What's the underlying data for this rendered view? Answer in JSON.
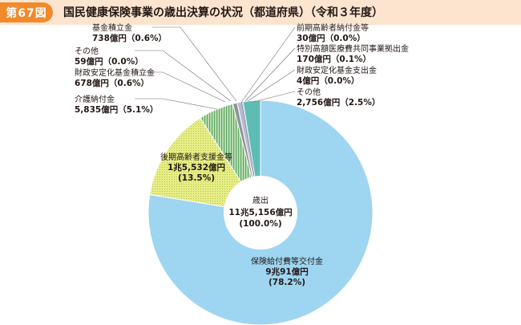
{
  "figure": {
    "number": "第67図",
    "title": "国民健康保険事業の歳出決算の状況（都道府県）（令和３年度）"
  },
  "colors": {
    "header_band": "#fce4cf",
    "badge": "#f08a2a",
    "main_slice": "#9ed5f1",
    "kaigo_slice": "#dfe96a",
    "kouki_slice": "#dfe96a",
    "kikin_slice": "#a9d6a3",
    "other_slice": "#5dbcb6",
    "small_slice": "#b3b9dc"
  },
  "chart_data": {
    "type": "pie",
    "center": {
      "label": "歳出",
      "value": "11兆5,156億円",
      "pct": "(100.0%)"
    },
    "slices": [
      {
        "name": "保険給付費等交付金",
        "amount": "9兆91億円",
        "pct": "(78.2%)",
        "share": 78.2,
        "style": "solid_blue"
      },
      {
        "name": "後期高齢者支援金等",
        "amount": "1兆5,532億円",
        "pct": "(13.5%)",
        "share": 13.5,
        "style": "dots_yellow"
      },
      {
        "name": "介護納付金",
        "amount": "5,835億円",
        "pct": "（5.1%）",
        "share": 5.1,
        "style": "stripes_green"
      },
      {
        "name": "財政安定化基金積立金",
        "amount": "678億円",
        "pct": "（0.6%）",
        "share": 0.6,
        "style": "gray"
      },
      {
        "name": "その他",
        "amount": "59億円",
        "pct": "（0.0%）",
        "share": 0.05,
        "style": "white"
      },
      {
        "name": "基金積立金",
        "amount": "738億円",
        "pct": "（0.6%）",
        "share": 0.6,
        "style": "lavender"
      },
      {
        "name": "前期高齢者納付金等",
        "amount": "30億円",
        "pct": "（0.0%）",
        "share": 0.05,
        "style": "white"
      },
      {
        "name": "特別高額医療費共同事業拠出金",
        "amount": "170億円",
        "pct": "（0.1%）",
        "share": 0.15,
        "style": "white"
      },
      {
        "name": "財政安定化基金支出金",
        "amount": "4億円",
        "pct": "（0.0%）",
        "share": 0.05,
        "style": "white"
      },
      {
        "name": "その他",
        "amount": "2,756億円",
        "pct": "（2.5%）",
        "share": 2.5,
        "style": "teal"
      }
    ]
  }
}
